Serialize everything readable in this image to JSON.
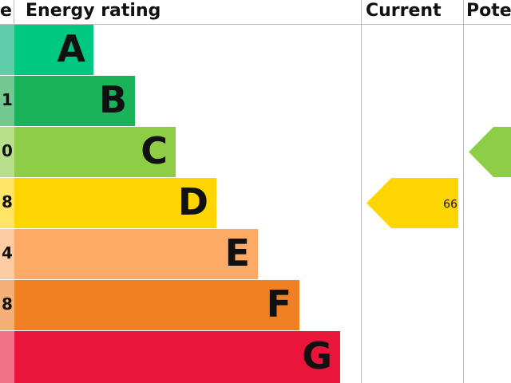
{
  "header": {
    "score": "e",
    "rating": "Energy rating",
    "current": "Current",
    "potential": "Pote"
  },
  "bands": [
    {
      "letter": "A",
      "score": null,
      "color": "#00c781",
      "light": "#62cdaa"
    },
    {
      "letter": "B",
      "score": "1",
      "color": "#19b459",
      "light": "#72c88f"
    },
    {
      "letter": "C",
      "score": "0",
      "color": "#8dce46",
      "light": "#b7df8c"
    },
    {
      "letter": "D",
      "score": "8",
      "color": "#ffd500",
      "light": "#ffe466"
    },
    {
      "letter": "E",
      "score": "4",
      "color": "#fcaa65",
      "light": "#fdcca3"
    },
    {
      "letter": "F",
      "score": "8",
      "color": "#ef8023",
      "light": "#f5b078"
    },
    {
      "letter": "G",
      "score": null,
      "color": "#e9153b",
      "light": "#f07388"
    }
  ],
  "current": {
    "value": 66,
    "band": 3
  },
  "potential": {
    "band": 2
  }
}
